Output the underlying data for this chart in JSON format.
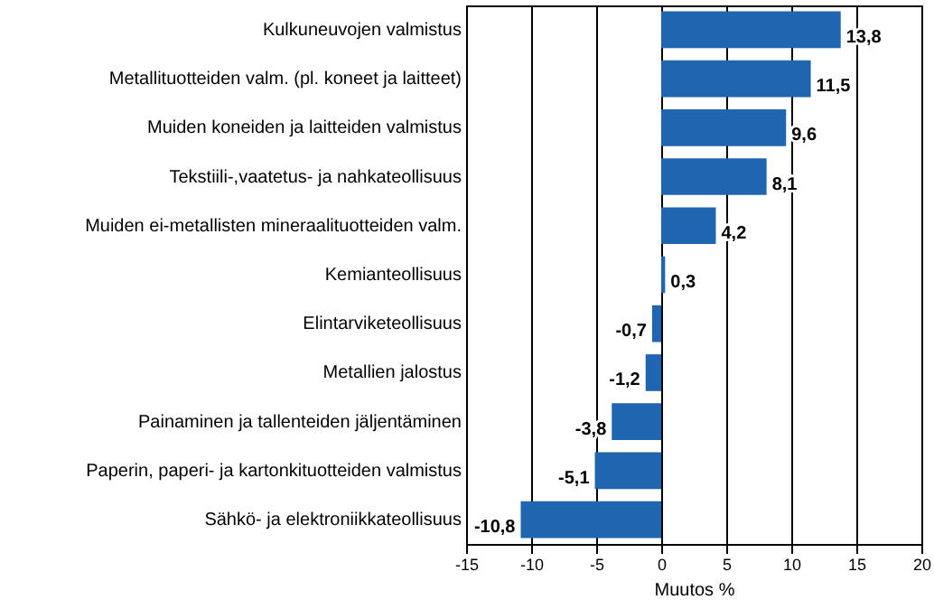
{
  "chart_data": {
    "type": "bar",
    "orientation": "horizontal",
    "xlabel": "Muutos  %",
    "categories": [
      "Kulkuneuvojen valmistus",
      "Metallituotteiden valm. (pl. koneet ja laitteet)",
      "Muiden koneiden ja laitteiden valmistus",
      "Tekstiili-,vaatetus- ja nahkateollisuus",
      "Muiden ei-metallisten mineraalituotteiden valm.",
      "Kemianteollisuus",
      "Elintarviketeollisuus",
      "Metallien jalostus",
      "Painaminen ja tallenteiden jäljentäminen",
      "Paperin, paperi- ja kartonkituotteiden valmistus",
      "Sähkö- ja elektroniikkateollisuus"
    ],
    "values": [
      13.8,
      11.5,
      9.6,
      8.1,
      4.2,
      0.3,
      -0.7,
      -1.2,
      -3.8,
      -5.1,
      -10.8
    ],
    "value_labels": [
      "13,8",
      "11,5",
      "9,6",
      "8,1",
      "4,2",
      "0,3",
      "-0,7",
      "-1,2",
      "-3,8",
      "-5,1",
      "-10,8"
    ],
    "color": "#1f65b0",
    "xlim": [
      -15,
      20
    ],
    "xticks": [
      -15,
      -10,
      -5,
      0,
      5,
      10,
      15,
      20
    ],
    "grid": "x"
  }
}
